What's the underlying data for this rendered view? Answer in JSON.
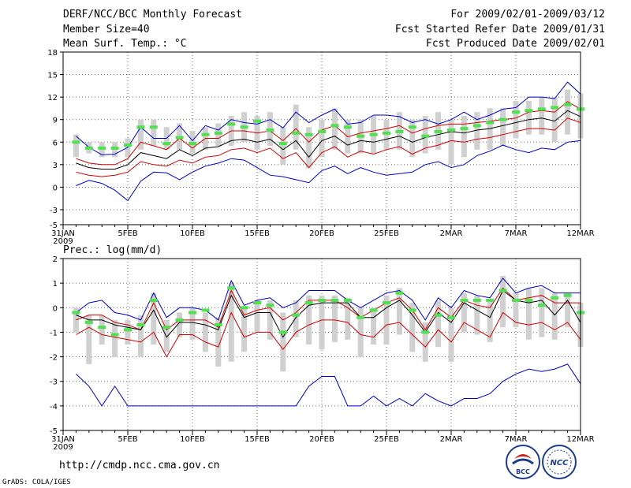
{
  "header": {
    "title": "DERF/NCC/BCC Monthly Forecast",
    "member_size": "Member Size=40",
    "period": "For 2009/02/01-2009/03/12",
    "started_refer": "Fcst Started Refer Date 2009/01/31",
    "produced": "Fcst Produced Date 2009/02/01"
  },
  "footer": {
    "url": "http://cmdp.ncc.cma.gov.cn",
    "grads": "GrADS: COLA/IGES",
    "logo_bcc": "BCC",
    "logo_ncc": "NCC"
  },
  "colors": {
    "blue": "#0000c8",
    "red": "#d00000",
    "black": "#000000",
    "green": "#50e050",
    "box": "#d0d0d0"
  },
  "chart_data": [
    {
      "type": "line",
      "title": "Mean Surf. Temp.: °C",
      "ylim": [
        -5,
        18
      ],
      "yticks": [
        -5,
        -3,
        0,
        3,
        6,
        9,
        12,
        15,
        18
      ],
      "xticks": [
        {
          "day": 0,
          "label": "31JAN",
          "sub": "2009"
        },
        {
          "day": 5,
          "label": "5FEB"
        },
        {
          "day": 10,
          "label": "10FEB"
        },
        {
          "day": 15,
          "label": "15FEB"
        },
        {
          "day": 20,
          "label": "20FEB"
        },
        {
          "day": 25,
          "label": "25FEB"
        },
        {
          "day": 30,
          "label": "2MAR"
        },
        {
          "day": 35,
          "label": "7MAR"
        },
        {
          "day": 40,
          "label": "12MAR"
        }
      ],
      "x_range": [
        0,
        40
      ],
      "day_start": 1,
      "series": [
        {
          "name": "max",
          "color": "blue",
          "values": [
            6.8,
            5.3,
            4.3,
            4.4,
            5.3,
            8.0,
            6.5,
            6.5,
            8.2,
            6.2,
            8.2,
            7.6,
            9.0,
            8.6,
            8.4,
            9.0,
            7.9,
            10.0,
            8.6,
            9.6,
            10.4,
            8.4,
            8.6,
            9.6,
            9.6,
            9.4,
            8.6,
            9.0,
            8.4,
            9.0,
            10.0,
            9.0,
            9.6,
            10.4,
            10.6,
            12.0,
            12.0,
            11.8,
            14.0,
            12.4
          ]
        },
        {
          "name": "upper",
          "color": "red",
          "values": [
            3.8,
            3.2,
            3.0,
            3.0,
            3.8,
            6.0,
            5.5,
            5.0,
            6.5,
            5.2,
            6.5,
            6.5,
            7.5,
            7.5,
            7.2,
            7.5,
            6.2,
            7.8,
            6.0,
            7.6,
            8.2,
            6.7,
            7.2,
            7.5,
            7.8,
            8.2,
            7.2,
            7.8,
            8.2,
            8.4,
            8.4,
            8.6,
            8.8,
            9.0,
            9.2,
            10.0,
            10.2,
            10.0,
            11.4,
            10.4
          ]
        },
        {
          "name": "mean",
          "color": "black",
          "values": [
            3.2,
            2.6,
            2.4,
            2.4,
            3.0,
            4.6,
            4.2,
            3.8,
            5.0,
            4.2,
            5.2,
            5.4,
            6.2,
            6.4,
            6.0,
            6.4,
            5.0,
            6.2,
            4.0,
            6.2,
            6.8,
            5.6,
            6.2,
            6.0,
            6.4,
            6.8,
            6.0,
            6.6,
            7.0,
            7.4,
            7.2,
            7.6,
            7.8,
            8.2,
            8.6,
            9.0,
            9.2,
            8.8,
            10.2,
            9.4
          ]
        },
        {
          "name": "lower",
          "color": "red",
          "values": [
            2.0,
            1.6,
            1.4,
            1.6,
            2.0,
            3.4,
            3.0,
            2.8,
            3.6,
            3.2,
            4.0,
            4.2,
            5.0,
            5.2,
            4.6,
            5.2,
            3.8,
            4.6,
            2.6,
            4.6,
            5.4,
            4.0,
            4.8,
            4.4,
            5.0,
            5.4,
            4.4,
            5.2,
            5.6,
            6.2,
            6.0,
            6.4,
            6.6,
            7.0,
            7.4,
            7.8,
            7.8,
            7.6,
            9.2,
            8.6
          ]
        },
        {
          "name": "min",
          "color": "blue",
          "values": [
            0.2,
            0.9,
            0.5,
            -0.4,
            -1.8,
            0.8,
            2.0,
            1.9,
            1.0,
            2.0,
            2.8,
            3.2,
            3.8,
            3.6,
            2.6,
            1.6,
            1.4,
            1.0,
            0.6,
            2.2,
            2.8,
            1.8,
            2.6,
            2.0,
            1.6,
            1.8,
            2.0,
            3.0,
            3.4,
            2.6,
            3.0,
            4.2,
            4.8,
            5.6,
            5.0,
            4.6,
            5.2,
            5.0,
            6.0,
            6.2
          ]
        }
      ],
      "boxes": [
        [
          4,
          7
        ],
        [
          4.5,
          6
        ],
        [
          4,
          6
        ],
        [
          4,
          6
        ],
        [
          4,
          6.5
        ],
        [
          5,
          9
        ],
        [
          5.5,
          9
        ],
        [
          5,
          8
        ],
        [
          5,
          8.5
        ],
        [
          4.5,
          7.5
        ],
        [
          5,
          8
        ],
        [
          5.5,
          8.5
        ],
        [
          5.5,
          9.5
        ],
        [
          6,
          10
        ],
        [
          5,
          9.5
        ],
        [
          5.5,
          10
        ],
        [
          3,
          8
        ],
        [
          5,
          11
        ],
        [
          2.5,
          8
        ],
        [
          4,
          9
        ],
        [
          5,
          10.5
        ],
        [
          4.5,
          9
        ],
        [
          4.5,
          9
        ],
        [
          4.5,
          9.5
        ],
        [
          5,
          9
        ],
        [
          5,
          10
        ],
        [
          4,
          9
        ],
        [
          4.5,
          9.5
        ],
        [
          5,
          10
        ],
        [
          3,
          9
        ],
        [
          4,
          9.5
        ],
        [
          5,
          10
        ],
        [
          5,
          10.5
        ],
        [
          5.5,
          10.5
        ],
        [
          6.5,
          11.5
        ],
        [
          7,
          11.5
        ],
        [
          7,
          12
        ],
        [
          6,
          12
        ],
        [
          7,
          13
        ],
        [
          6.5,
          12.5
        ]
      ],
      "green": [
        6.0,
        5.2,
        5.2,
        5.2,
        5.6,
        8.0,
        8.0,
        5.8,
        6.6,
        5.8,
        7.0,
        7.2,
        8.4,
        8.0,
        8.8,
        7.6,
        5.8,
        7.2,
        7.0,
        7.4,
        8.2,
        8.0,
        6.8,
        7.0,
        7.2,
        7.4,
        8.0,
        6.8,
        7.4,
        7.6,
        7.8,
        8.2,
        8.6,
        9.0,
        10.0,
        10.2,
        10.4,
        10.6,
        11.0,
        10.4
      ]
    },
    {
      "type": "line",
      "title": "Prec.: log(mm/d)",
      "ylim": [
        -5,
        2
      ],
      "yticks": [
        -5,
        -4,
        -3,
        -2,
        -1,
        0,
        1,
        2
      ],
      "xticks": [
        {
          "day": 0,
          "label": "31JAN",
          "sub": "2009"
        },
        {
          "day": 5,
          "label": "5FEB"
        },
        {
          "day": 10,
          "label": "10FEB"
        },
        {
          "day": 15,
          "label": "15FEB"
        },
        {
          "day": 20,
          "label": "20FEB"
        },
        {
          "day": 25,
          "label": "25FEB"
        },
        {
          "day": 30,
          "label": "2MAR"
        },
        {
          "day": 35,
          "label": "7MAR"
        },
        {
          "day": 40,
          "label": "12MAR"
        }
      ],
      "x_range": [
        0,
        40
      ],
      "day_start": 1,
      "series": [
        {
          "name": "max",
          "color": "blue",
          "values": [
            -0.2,
            0.2,
            0.3,
            -0.2,
            -0.3,
            -0.5,
            0.6,
            -0.4,
            0.0,
            0.0,
            -0.1,
            -0.5,
            1.1,
            0.1,
            0.3,
            0.4,
            0.0,
            0.2,
            0.7,
            0.7,
            0.7,
            0.3,
            0.0,
            0.3,
            0.6,
            0.7,
            0.3,
            -0.5,
            0.4,
            0.0,
            0.7,
            0.5,
            0.4,
            1.2,
            0.6,
            0.8,
            0.9,
            0.6,
            0.6,
            0.6
          ]
        },
        {
          "name": "upper",
          "color": "red",
          "values": [
            -0.5,
            -0.3,
            -0.3,
            -0.6,
            -0.7,
            -0.9,
            0.2,
            -0.9,
            -0.5,
            -0.5,
            -0.5,
            -0.8,
            0.7,
            -0.3,
            -0.1,
            0.0,
            -0.5,
            -0.2,
            0.3,
            0.3,
            0.3,
            0.0,
            -0.4,
            -0.1,
            0.2,
            0.4,
            -0.1,
            -0.9,
            0.0,
            -0.4,
            0.3,
            0.1,
            0.0,
            0.8,
            0.3,
            0.4,
            0.5,
            0.2,
            0.2,
            0.2
          ]
        },
        {
          "name": "mean",
          "color": "black",
          "values": [
            -0.3,
            -0.5,
            -0.5,
            -0.7,
            -0.8,
            -0.9,
            -0.1,
            -1.2,
            -0.6,
            -0.6,
            -0.7,
            -0.9,
            0.5,
            -0.4,
            -0.2,
            -0.2,
            -1.2,
            -0.4,
            0.1,
            0.2,
            0.2,
            0.2,
            -0.4,
            -0.4,
            0.0,
            0.3,
            -0.3,
            -1.0,
            -0.2,
            -0.6,
            0.2,
            -0.1,
            -0.4,
            0.7,
            0.3,
            0.2,
            0.3,
            -0.3,
            0.3,
            -0.6
          ]
        },
        {
          "name": "lower",
          "color": "red",
          "values": [
            -1.1,
            -0.8,
            -1.1,
            -1.2,
            -1.3,
            -1.4,
            -1.0,
            -2.0,
            -1.1,
            -1.1,
            -1.4,
            -1.6,
            -0.2,
            -1.2,
            -1.0,
            -1.0,
            -1.7,
            -1.0,
            -0.7,
            -0.5,
            -0.5,
            -0.6,
            -1.1,
            -1.2,
            -0.7,
            -0.6,
            -1.1,
            -1.6,
            -0.9,
            -1.4,
            -0.6,
            -0.9,
            -1.2,
            -0.2,
            -0.6,
            -0.7,
            -0.6,
            -0.9,
            -0.6,
            -1.3
          ]
        },
        {
          "name": "min",
          "color": "blue",
          "values": [
            -2.7,
            -3.2,
            -4.0,
            -3.2,
            -4.0,
            -4.0,
            -4.0,
            -4.0,
            -4.0,
            -4.0,
            -4.0,
            -4.0,
            -4.0,
            -4.0,
            -4.0,
            -4.0,
            -4.0,
            -4.0,
            -3.2,
            -2.8,
            -2.8,
            -4.0,
            -4.0,
            -3.6,
            -4.0,
            -3.7,
            -4.0,
            -3.5,
            -3.8,
            -4.0,
            -3.7,
            -3.7,
            -3.5,
            -3.0,
            -2.7,
            -2.5,
            -2.6,
            -2.5,
            -2.3,
            -3.1
          ]
        }
      ],
      "boxes": [
        [
          -1,
          0
        ],
        [
          -2.3,
          -0.3
        ],
        [
          -1.5,
          -0.3
        ],
        [
          -2,
          -0.5
        ],
        [
          -1.5,
          -0.5
        ],
        [
          -2,
          -0.3
        ],
        [
          -1.5,
          0.6
        ],
        [
          -1.8,
          -0.5
        ],
        [
          -1.2,
          -0.2
        ],
        [
          -1.3,
          0
        ],
        [
          -1.8,
          -0.2
        ],
        [
          -2.4,
          -0.4
        ],
        [
          -2.2,
          1
        ],
        [
          -1.8,
          0
        ],
        [
          -1,
          0.3
        ],
        [
          -1.3,
          0.3
        ],
        [
          -2.6,
          -0.2
        ],
        [
          -1.2,
          0.3
        ],
        [
          -1.5,
          0.5
        ],
        [
          -1.7,
          0.5
        ],
        [
          -1.4,
          0.5
        ],
        [
          -1.3,
          0.4
        ],
        [
          -2,
          0
        ],
        [
          -1.5,
          0
        ],
        [
          -1.5,
          0.5
        ],
        [
          -1.1,
          0.8
        ],
        [
          -1.8,
          0.2
        ],
        [
          -2.2,
          -0.6
        ],
        [
          -1.6,
          0.3
        ],
        [
          -2.2,
          0
        ],
        [
          -1,
          0.6
        ],
        [
          -1.1,
          0.5
        ],
        [
          -1.4,
          0.3
        ],
        [
          -0.8,
          1.3
        ],
        [
          -0.8,
          0.6
        ],
        [
          -1.3,
          0.8
        ],
        [
          -1.2,
          0.8
        ],
        [
          -1.3,
          0.6
        ],
        [
          -0.8,
          0.6
        ],
        [
          -1.6,
          0.2
        ]
      ],
      "green": [
        -0.2,
        -0.6,
        -0.8,
        -1.1,
        -0.9,
        -0.7,
        0.3,
        -0.8,
        -0.5,
        -0.2,
        -0.1,
        -0.7,
        0.8,
        0.0,
        0.2,
        0.1,
        -1.0,
        -0.3,
        0.2,
        0.3,
        0.3,
        0.3,
        -0.4,
        -0.1,
        0.2,
        0.6,
        -0.1,
        -1.0,
        -0.3,
        -0.4,
        0.3,
        0.3,
        0.3,
        0.7,
        0.3,
        0.3,
        0.1,
        0.4,
        0.5,
        -0.2
      ]
    }
  ]
}
